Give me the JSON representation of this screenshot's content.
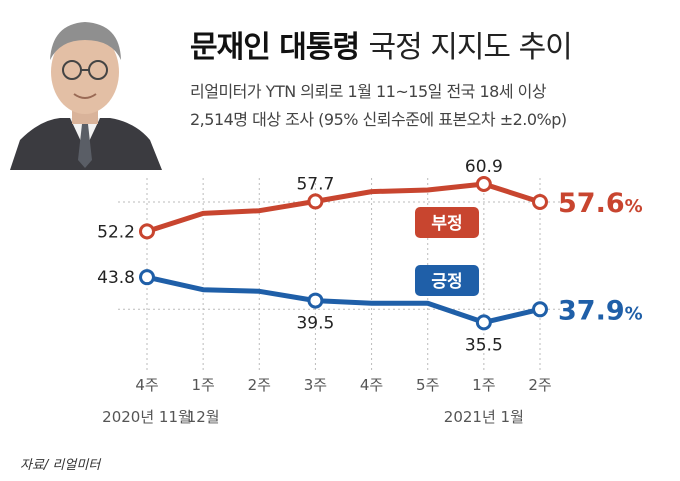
{
  "header": {
    "title_bold": "문재인 대통령",
    "title_light": "국정 지지도 추이",
    "subtitle_line1": "리얼미터가 YTN 의뢰로 1월 11~15일 전국 18세 이상",
    "subtitle_line2": "2,514명 대상 조사 (95% 신뢰수준에 표본오차 ±2.0%p)"
  },
  "source": "자료/ 리얼미터",
  "colors": {
    "negative": "#c8452f",
    "positive": "#1f5fa8",
    "grid": "#bbbbbb",
    "tick": "#555555"
  },
  "chart_data": {
    "type": "line",
    "categories": [
      "4주",
      "1주",
      "2주",
      "3주",
      "4주",
      "5주",
      "1주",
      "2주"
    ],
    "periods": [
      {
        "label": "2020년 11월",
        "index": 0
      },
      {
        "label": "12월",
        "index": 1
      },
      {
        "label": "2021년 1월",
        "index": 6
      }
    ],
    "series": [
      {
        "name": "부정",
        "values": [
          52.2,
          55.5,
          56.0,
          57.7,
          59.5,
          59.8,
          60.9,
          57.6
        ],
        "labeled": [
          0,
          3,
          6
        ]
      },
      {
        "name": "긍정",
        "values": [
          43.8,
          41.5,
          41.2,
          39.5,
          39.0,
          39.0,
          35.5,
          37.9
        ],
        "labeled": [
          0,
          3,
          6
        ]
      }
    ],
    "final_labels": [
      "57.6",
      "37.9"
    ],
    "unit": "%",
    "ylim": [
      33,
      62
    ]
  }
}
